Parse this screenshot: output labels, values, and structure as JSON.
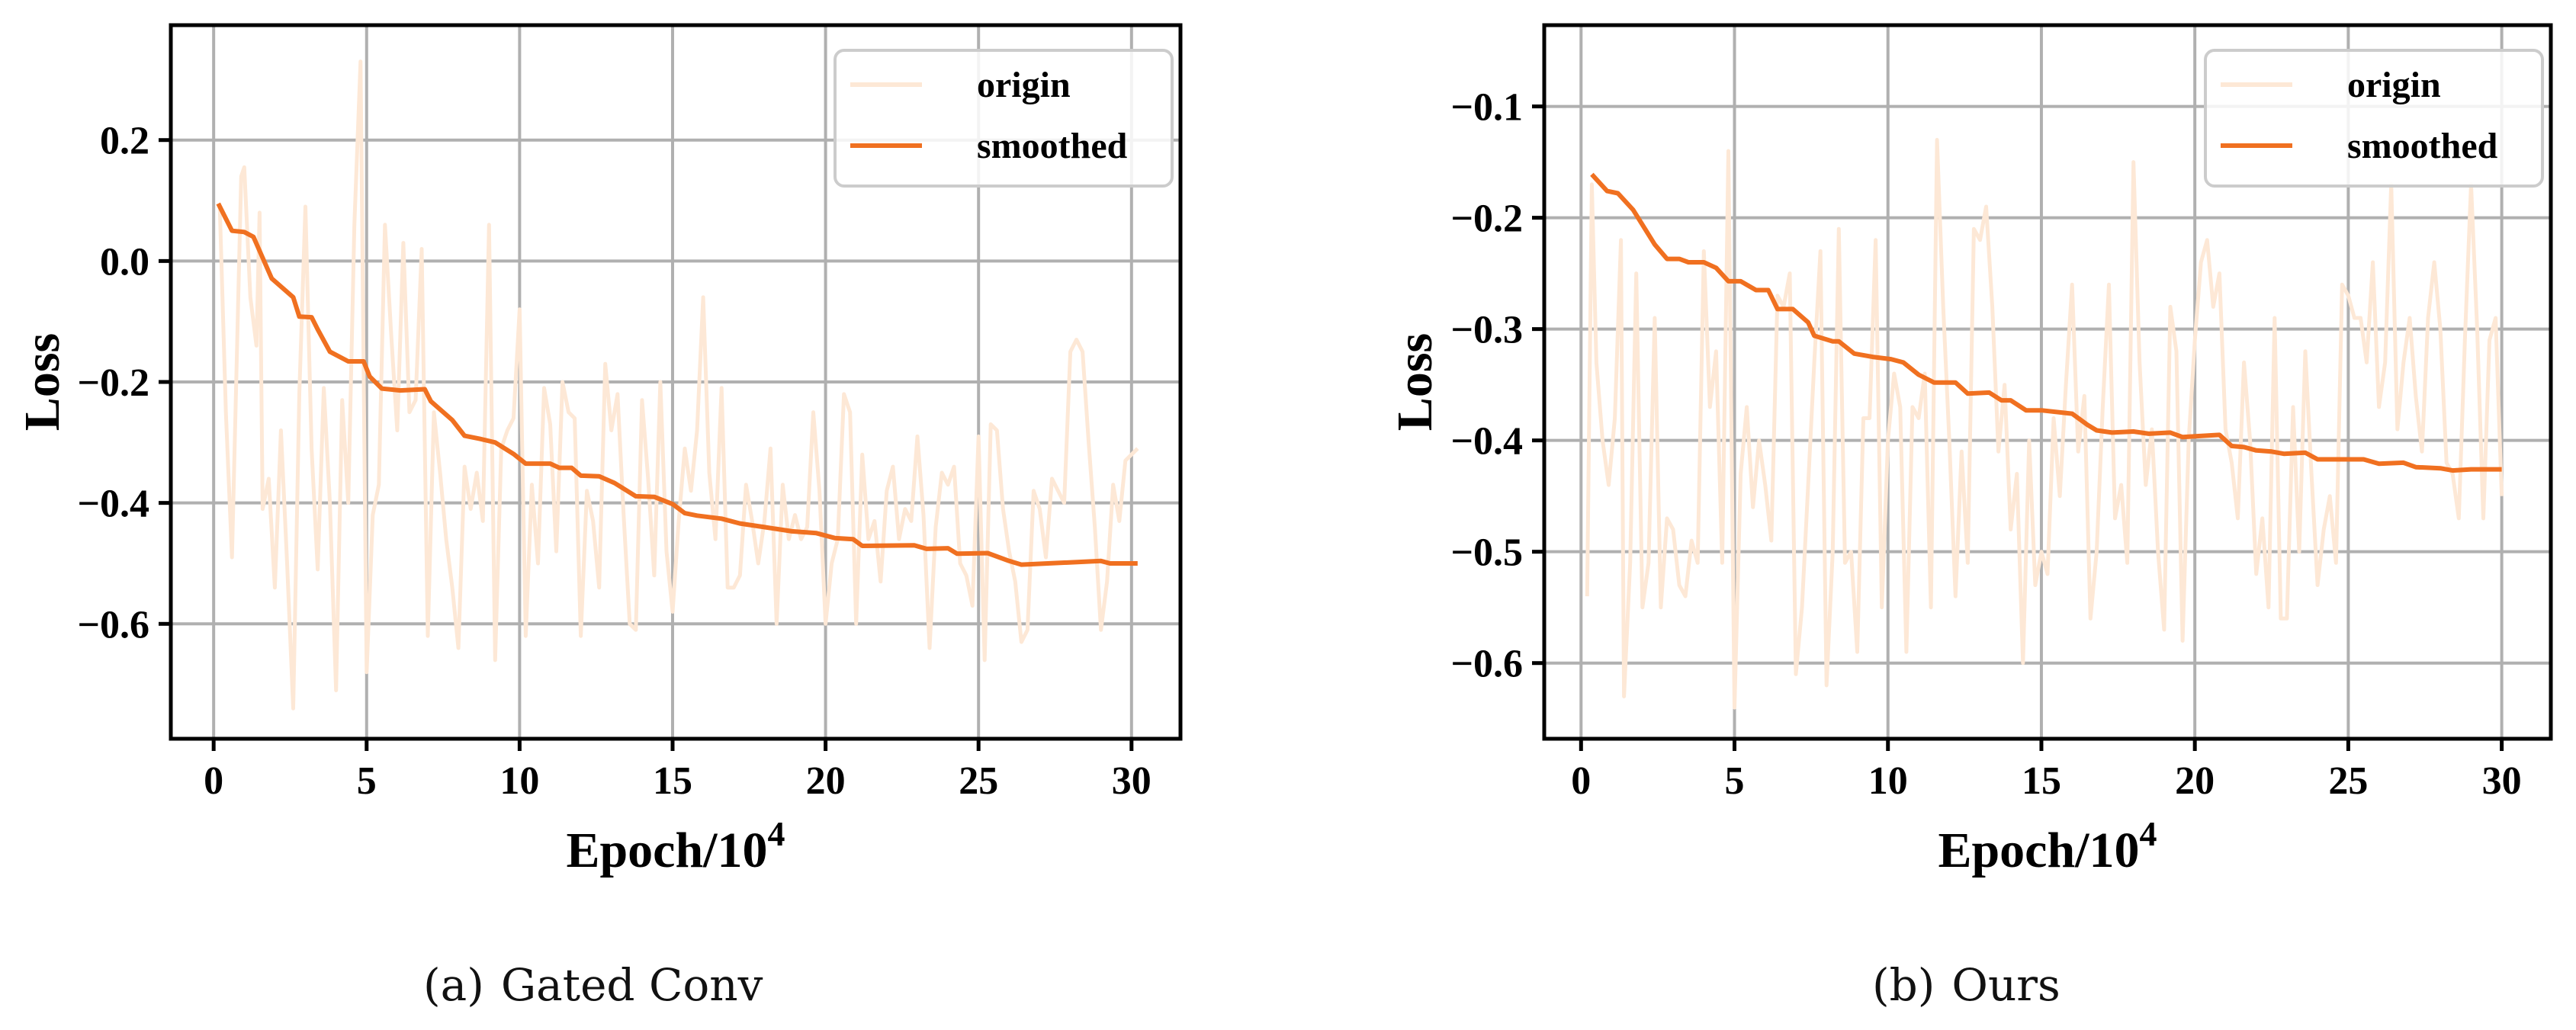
{
  "figure": {
    "captions": [
      {
        "tag": "(a)",
        "text": "Gated Conv"
      },
      {
        "tag": "(b)",
        "text": "Ours"
      }
    ]
  },
  "colors": {
    "origin": "#fde8d6",
    "smoothed": "#f07020",
    "grid": "#b0b0b0",
    "axis": "#000000",
    "legend_border": "#cccccc"
  },
  "chart_data": [
    {
      "type": "line",
      "title": "(a) Gated Conv",
      "xlabel": "Epoch/10^4",
      "xlabel_base": "Epoch/10",
      "xlabel_sup": "4",
      "ylabel": "Loss",
      "xlim": [
        -1.4,
        31.6
      ],
      "ylim": [
        -0.79,
        0.39
      ],
      "xticks": [
        0,
        5,
        10,
        15,
        20,
        25,
        30
      ],
      "yticks": [
        0.2,
        0.0,
        -0.2,
        -0.4,
        -0.6
      ],
      "ytick_labels": [
        "0.2",
        "0.0",
        "−0.2",
        "−0.4",
        "−0.6"
      ],
      "grid": true,
      "legend": {
        "position": "upper right",
        "entries": [
          "origin",
          "smoothed"
        ]
      },
      "series": [
        {
          "name": "origin",
          "x": [
            0.2,
            0.4,
            0.6,
            0.9,
            1.0,
            1.2,
            1.4,
            1.5,
            1.6,
            1.8,
            2.0,
            2.2,
            2.4,
            2.6,
            2.8,
            3.0,
            3.2,
            3.4,
            3.6,
            3.8,
            4.0,
            4.2,
            4.4,
            4.6,
            4.8,
            5.0,
            5.2,
            5.4,
            5.6,
            5.8,
            6.0,
            6.2,
            6.4,
            6.6,
            6.8,
            7.0,
            7.2,
            7.4,
            7.6,
            7.8,
            8.0,
            8.2,
            8.4,
            8.6,
            8.8,
            9.0,
            9.2,
            9.4,
            9.6,
            9.8,
            10.0,
            10.2,
            10.4,
            10.6,
            10.8,
            11.0,
            11.2,
            11.4,
            11.6,
            11.8,
            12.0,
            12.2,
            12.4,
            12.6,
            12.8,
            13.0,
            13.2,
            13.4,
            13.6,
            13.8,
            14.0,
            14.2,
            14.4,
            14.6,
            14.8,
            15.0,
            15.2,
            15.4,
            15.6,
            15.8,
            16.0,
            16.2,
            16.4,
            16.6,
            16.8,
            17.0,
            17.2,
            17.4,
            17.6,
            17.8,
            18.0,
            18.2,
            18.4,
            18.6,
            18.8,
            19.0,
            19.2,
            19.4,
            19.6,
            19.8,
            20.0,
            20.2,
            20.4,
            20.6,
            20.8,
            21.0,
            21.2,
            21.4,
            21.6,
            21.8,
            22.0,
            22.2,
            22.4,
            22.6,
            22.8,
            23.0,
            23.2,
            23.4,
            23.6,
            23.8,
            24.0,
            24.2,
            24.4,
            24.6,
            24.8,
            25.0,
            25.2,
            25.4,
            25.6,
            25.8,
            26.0,
            26.2,
            26.4,
            26.6,
            26.8,
            27.0,
            27.2,
            27.4,
            27.6,
            27.8,
            28.0,
            28.2,
            28.4,
            28.6,
            28.8,
            29.0,
            29.2,
            29.4,
            29.6,
            29.8,
            30.0,
            30.2
          ],
          "values": [
            0.09,
            -0.25,
            -0.49,
            0.14,
            0.155,
            -0.06,
            -0.14,
            0.08,
            -0.41,
            -0.36,
            -0.54,
            -0.28,
            -0.5,
            -0.74,
            -0.22,
            0.09,
            -0.31,
            -0.51,
            -0.21,
            -0.4,
            -0.71,
            -0.23,
            -0.4,
            0.06,
            0.33,
            -0.68,
            -0.42,
            -0.37,
            0.06,
            -0.12,
            -0.28,
            0.03,
            -0.25,
            -0.23,
            0.02,
            -0.62,
            -0.25,
            -0.35,
            -0.46,
            -0.54,
            -0.64,
            -0.34,
            -0.41,
            -0.35,
            -0.43,
            0.06,
            -0.66,
            -0.31,
            -0.28,
            -0.26,
            -0.08,
            -0.62,
            -0.37,
            -0.5,
            -0.21,
            -0.27,
            -0.48,
            -0.2,
            -0.25,
            -0.26,
            -0.62,
            -0.38,
            -0.43,
            -0.54,
            -0.17,
            -0.28,
            -0.22,
            -0.42,
            -0.6,
            -0.61,
            -0.23,
            -0.36,
            -0.52,
            -0.2,
            -0.48,
            -0.58,
            -0.43,
            -0.31,
            -0.38,
            -0.28,
            -0.06,
            -0.35,
            -0.46,
            -0.21,
            -0.54,
            -0.54,
            -0.52,
            -0.37,
            -0.43,
            -0.5,
            -0.43,
            -0.31,
            -0.6,
            -0.37,
            -0.46,
            -0.42,
            -0.46,
            -0.44,
            -0.25,
            -0.38,
            -0.6,
            -0.5,
            -0.46,
            -0.22,
            -0.25,
            -0.6,
            -0.32,
            -0.46,
            -0.43,
            -0.53,
            -0.38,
            -0.34,
            -0.46,
            -0.41,
            -0.43,
            -0.29,
            -0.42,
            -0.64,
            -0.44,
            -0.35,
            -0.37,
            -0.34,
            -0.5,
            -0.52,
            -0.57,
            -0.29,
            -0.66,
            -0.27,
            -0.28,
            -0.41,
            -0.48,
            -0.53,
            -0.63,
            -0.61,
            -0.38,
            -0.41,
            -0.49,
            -0.36,
            -0.38,
            -0.4,
            -0.15,
            -0.13,
            -0.15,
            -0.3,
            -0.44,
            -0.61,
            -0.53,
            -0.37,
            -0.43,
            -0.33,
            -0.32,
            -0.31
          ]
        },
        {
          "name": "smoothed",
          "x": [
            0.15,
            0.6,
            1.0,
            1.3,
            1.9,
            2.6,
            2.8,
            3.2,
            3.4,
            3.8,
            4.4,
            4.9,
            5.1,
            5.5,
            6.1,
            6.9,
            7.1,
            7.8,
            8.2,
            8.7,
            9.2,
            9.8,
            10.2,
            11.0,
            11.3,
            11.7,
            12.0,
            12.6,
            13.1,
            13.8,
            14.4,
            15.0,
            15.4,
            15.8,
            16.6,
            17.2,
            18.0,
            18.9,
            19.7,
            20.3,
            20.9,
            21.2,
            22.9,
            23.3,
            24.0,
            24.3,
            25.3,
            26.0,
            26.4,
            29.0,
            29.3,
            30.2
          ],
          "values": [
            0.095,
            0.05,
            0.048,
            0.04,
            -0.029,
            -0.06,
            -0.092,
            -0.093,
            -0.113,
            -0.15,
            -0.166,
            -0.166,
            -0.191,
            -0.211,
            -0.214,
            -0.212,
            -0.232,
            -0.263,
            -0.289,
            -0.294,
            -0.3,
            -0.319,
            -0.335,
            -0.335,
            -0.342,
            -0.342,
            -0.355,
            -0.356,
            -0.367,
            -0.389,
            -0.39,
            -0.402,
            -0.417,
            -0.421,
            -0.426,
            -0.434,
            -0.44,
            -0.447,
            -0.45,
            -0.458,
            -0.46,
            -0.471,
            -0.47,
            -0.476,
            -0.475,
            -0.484,
            -0.483,
            -0.496,
            -0.502,
            -0.496,
            -0.5,
            -0.5
          ]
        }
      ]
    },
    {
      "type": "line",
      "title": "(b) Ours",
      "xlabel": "Epoch/10^4",
      "xlabel_base": "Epoch/10",
      "xlabel_sup": "4",
      "ylabel": "Loss",
      "xlim": [
        -1.2,
        31.6
      ],
      "ylim": [
        -0.668,
        -0.027
      ],
      "xticks": [
        0,
        5,
        10,
        15,
        20,
        25,
        30
      ],
      "yticks": [
        -0.1,
        -0.2,
        -0.3,
        -0.4,
        -0.5,
        -0.6
      ],
      "ytick_labels": [
        "−0.1",
        "−0.2",
        "−0.3",
        "−0.4",
        "−0.5",
        "−0.6"
      ],
      "grid": true,
      "legend": {
        "position": "upper right",
        "entries": [
          "origin",
          "smoothed"
        ]
      },
      "series": [
        {
          "name": "origin",
          "x": [
            0.2,
            0.35,
            0.5,
            0.7,
            0.9,
            1.1,
            1.3,
            1.4,
            1.6,
            1.8,
            2.0,
            2.2,
            2.4,
            2.6,
            2.8,
            3.0,
            3.2,
            3.4,
            3.6,
            3.8,
            4.0,
            4.2,
            4.4,
            4.6,
            4.8,
            5.0,
            5.2,
            5.4,
            5.6,
            5.8,
            6.0,
            6.2,
            6.4,
            6.6,
            6.8,
            7.0,
            7.2,
            7.4,
            7.6,
            7.8,
            8.0,
            8.2,
            8.4,
            8.6,
            8.8,
            9.0,
            9.2,
            9.4,
            9.6,
            9.8,
            10.0,
            10.2,
            10.4,
            10.6,
            10.8,
            11.0,
            11.2,
            11.4,
            11.6,
            11.8,
            12.0,
            12.2,
            12.4,
            12.6,
            12.8,
            13.0,
            13.2,
            13.4,
            13.6,
            13.8,
            14.0,
            14.2,
            14.4,
            14.6,
            14.8,
            15.0,
            15.2,
            15.4,
            15.6,
            15.8,
            16.0,
            16.2,
            16.4,
            16.6,
            16.8,
            17.0,
            17.2,
            17.4,
            17.6,
            17.8,
            18.0,
            18.2,
            18.4,
            18.6,
            18.8,
            19.0,
            19.2,
            19.4,
            19.6,
            19.8,
            20.0,
            20.2,
            20.4,
            20.6,
            20.8,
            21.0,
            21.2,
            21.4,
            21.6,
            21.8,
            22.0,
            22.2,
            22.4,
            22.6,
            22.8,
            23.0,
            23.2,
            23.4,
            23.6,
            23.8,
            24.0,
            24.2,
            24.4,
            24.6,
            24.8,
            25.0,
            25.2,
            25.4,
            25.6,
            25.8,
            26.0,
            26.2,
            26.4,
            26.6,
            26.8,
            27.0,
            27.2,
            27.4,
            27.6,
            27.8,
            28.0,
            28.2,
            28.4,
            28.6,
            28.8,
            29.0,
            29.2,
            29.4,
            29.6,
            29.8,
            30.0
          ],
          "values": [
            -0.54,
            -0.17,
            -0.33,
            -0.4,
            -0.44,
            -0.38,
            -0.22,
            -0.63,
            -0.51,
            -0.25,
            -0.55,
            -0.51,
            -0.29,
            -0.55,
            -0.47,
            -0.48,
            -0.53,
            -0.54,
            -0.49,
            -0.51,
            -0.23,
            -0.37,
            -0.32,
            -0.51,
            -0.14,
            -0.64,
            -0.43,
            -0.37,
            -0.46,
            -0.4,
            -0.44,
            -0.49,
            -0.27,
            -0.28,
            -0.25,
            -0.61,
            -0.55,
            -0.44,
            -0.33,
            -0.23,
            -0.62,
            -0.5,
            -0.21,
            -0.51,
            -0.5,
            -0.59,
            -0.38,
            -0.38,
            -0.22,
            -0.55,
            -0.4,
            -0.34,
            -0.37,
            -0.59,
            -0.37,
            -0.38,
            -0.34,
            -0.55,
            -0.13,
            -0.28,
            -0.4,
            -0.54,
            -0.41,
            -0.51,
            -0.21,
            -0.22,
            -0.19,
            -0.28,
            -0.41,
            -0.35,
            -0.48,
            -0.43,
            -0.6,
            -0.4,
            -0.53,
            -0.5,
            -0.52,
            -0.38,
            -0.45,
            -0.35,
            -0.26,
            -0.41,
            -0.36,
            -0.56,
            -0.5,
            -0.37,
            -0.26,
            -0.47,
            -0.44,
            -0.51,
            -0.15,
            -0.33,
            -0.44,
            -0.39,
            -0.5,
            -0.57,
            -0.28,
            -0.32,
            -0.58,
            -0.4,
            -0.31,
            -0.24,
            -0.22,
            -0.28,
            -0.25,
            -0.39,
            -0.42,
            -0.47,
            -0.33,
            -0.4,
            -0.52,
            -0.47,
            -0.55,
            -0.29,
            -0.56,
            -0.56,
            -0.37,
            -0.5,
            -0.32,
            -0.43,
            -0.53,
            -0.48,
            -0.45,
            -0.51,
            -0.26,
            -0.27,
            -0.29,
            -0.29,
            -0.33,
            -0.24,
            -0.37,
            -0.33,
            -0.17,
            -0.39,
            -0.33,
            -0.29,
            -0.36,
            -0.41,
            -0.29,
            -0.24,
            -0.3,
            -0.42,
            -0.43,
            -0.47,
            -0.31,
            -0.17,
            -0.3,
            -0.47,
            -0.31,
            -0.29,
            -0.45
          ]
        },
        {
          "name": "smoothed",
          "x": [
            0.35,
            0.85,
            1.2,
            1.7,
            2.4,
            2.8,
            3.2,
            3.5,
            4.0,
            4.4,
            4.8,
            5.2,
            5.7,
            6.1,
            6.4,
            6.9,
            7.4,
            7.6,
            8.2,
            8.4,
            8.9,
            9.5,
            10.1,
            10.5,
            11.0,
            11.5,
            12.2,
            12.6,
            13.3,
            13.7,
            14.0,
            14.5,
            15.0,
            16.0,
            16.5,
            16.8,
            17.3,
            18.0,
            18.5,
            19.2,
            19.6,
            20.8,
            21.2,
            21.6,
            22.0,
            22.5,
            22.9,
            23.6,
            24.0,
            25.5,
            26.0,
            26.8,
            27.2,
            28.0,
            28.4,
            29.0,
            30.0
          ],
          "values": [
            -0.161,
            -0.176,
            -0.178,
            -0.193,
            -0.224,
            -0.237,
            -0.237,
            -0.24,
            -0.24,
            -0.245,
            -0.257,
            -0.257,
            -0.265,
            -0.265,
            -0.282,
            -0.282,
            -0.294,
            -0.306,
            -0.311,
            -0.311,
            -0.322,
            -0.325,
            -0.327,
            -0.33,
            -0.341,
            -0.348,
            -0.348,
            -0.358,
            -0.357,
            -0.364,
            -0.364,
            -0.373,
            -0.373,
            -0.376,
            -0.386,
            -0.391,
            -0.393,
            -0.392,
            -0.394,
            -0.393,
            -0.397,
            -0.395,
            -0.405,
            -0.406,
            -0.409,
            -0.41,
            -0.412,
            -0.411,
            -0.417,
            -0.417,
            -0.421,
            -0.42,
            -0.424,
            -0.425,
            -0.427,
            -0.426,
            -0.426
          ]
        }
      ]
    }
  ]
}
